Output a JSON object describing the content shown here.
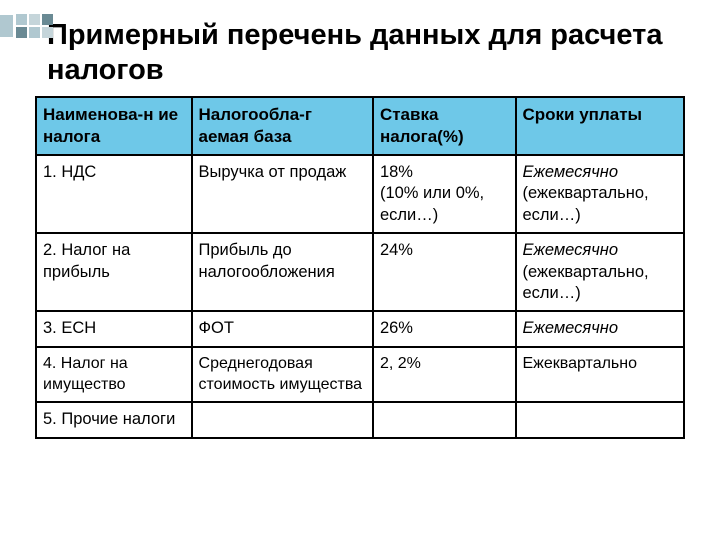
{
  "title": "Примерный перечень данных для расчета налогов",
  "columns": [
    "Наименова-н ие налога",
    "Налогообла-г аемая  база",
    "Ставка налога(%)",
    "Сроки уплаты"
  ],
  "rows": [
    {
      "c0": "1. НДС",
      "c1": "Выручка от продаж",
      "c2": "18%\n(10% или  0%, если…)",
      "c3_italic": "Ежемесячно",
      "c3_rest": " (ежеквартально, если…)"
    },
    {
      "c0": "2. Налог на прибыль",
      "c1": "Прибыль до налогообложения",
      "c2": "24%",
      "c3_italic": "Ежемесячно",
      "c3_rest": " (ежеквартально, если…)"
    },
    {
      "c0": "3. ЕСН",
      "c1": "ФОТ",
      "c2": "26%",
      "c3_italic": "Ежемесячно",
      "c3_rest": ""
    },
    {
      "c0": "4. Налог на имущество",
      "c1": "Среднегодовая стоимость имущества",
      "c2": "2, 2%",
      "c3_italic": "",
      "c3_rest": "Ежеквартально"
    },
    {
      "c0": "5. Прочие налоги",
      "c1": "",
      "c2": "",
      "c3_italic": "",
      "c3_rest": ""
    }
  ],
  "colors": {
    "header_bg": "#6ec8e8",
    "border": "#000000",
    "deco_bar": "#b0c8d0",
    "deco_s1": "#6a8a94",
    "deco_s2": "#b0c8d0",
    "deco_s3": "#c5d5da"
  }
}
